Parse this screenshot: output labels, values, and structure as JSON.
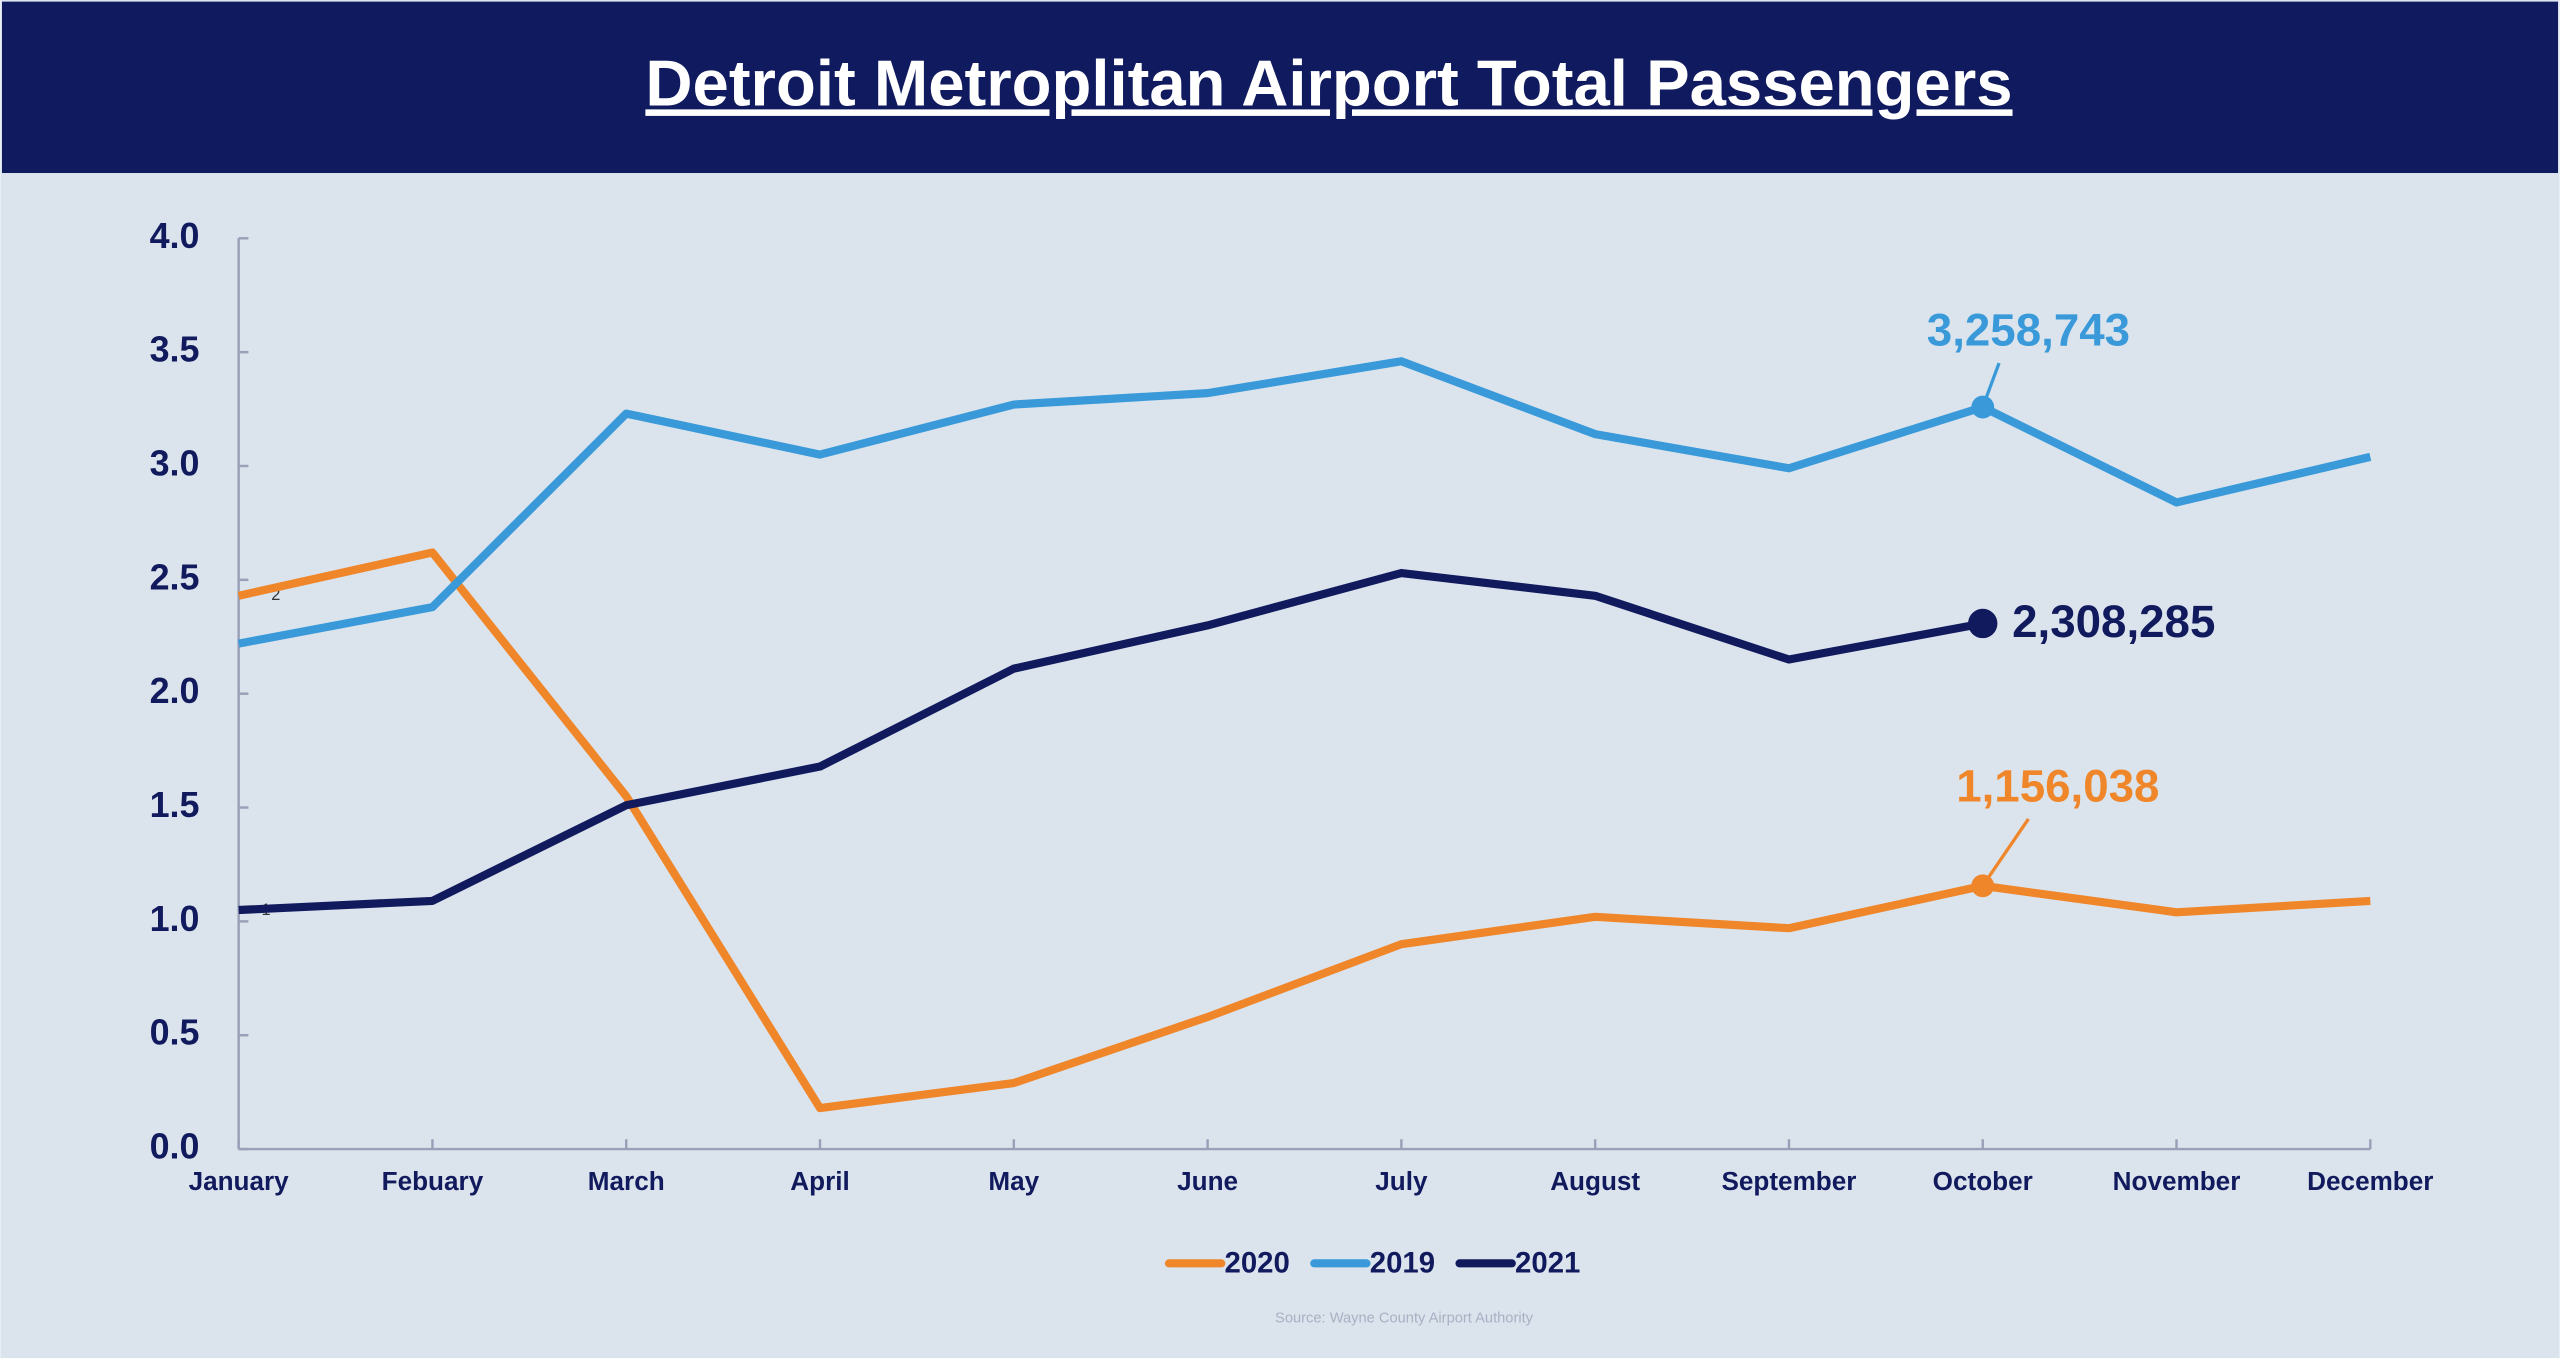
{
  "chart_data": {
    "type": "line",
    "title": "Detroit Metroplitan Airport Total Passengers",
    "categories": [
      "January",
      "Febuary",
      "March",
      "April",
      "May",
      "June",
      "July",
      "August",
      "September",
      "October",
      "November",
      "December"
    ],
    "series": [
      {
        "name": "2020",
        "color": "#f0862a",
        "values": [
          2.43,
          2.62,
          1.55,
          0.18,
          0.29,
          0.58,
          0.9,
          1.02,
          0.97,
          1.156038,
          1.04,
          1.09
        ],
        "value_labels": [
          null,
          null,
          null,
          null,
          null,
          null,
          null,
          null,
          null,
          "1,156,038",
          null,
          null
        ]
      },
      {
        "name": "2019",
        "color": "#3a9ad9",
        "values": [
          2.22,
          2.38,
          3.23,
          3.05,
          3.27,
          3.32,
          3.46,
          3.14,
          2.99,
          3.258743,
          2.84,
          3.04
        ],
        "value_labels": [
          null,
          null,
          null,
          null,
          null,
          null,
          null,
          null,
          null,
          "3,258,743",
          null,
          null
        ]
      },
      {
        "name": "2021",
        "color": "#121a5e",
        "values": [
          1.05,
          1.09,
          1.51,
          1.68,
          2.11,
          2.3,
          2.53,
          2.43,
          2.15,
          2.308285,
          null,
          null
        ],
        "value_labels": [
          null,
          null,
          null,
          null,
          null,
          null,
          null,
          null,
          null,
          "2,308,285",
          null,
          null
        ]
      }
    ],
    "ylim": [
      0,
      4
    ],
    "yticks": [
      {
        "value": 0,
        "label": "0.0"
      },
      {
        "value": 0.5,
        "label": "0.5"
      },
      {
        "value": 1,
        "label": "1.0"
      },
      {
        "value": 1.5,
        "label": "1.5"
      },
      {
        "value": 2,
        "label": "2.0"
      },
      {
        "value": 2.5,
        "label": "2.5"
      },
      {
        "value": 3,
        "label": "3.0"
      },
      {
        "value": 3.5,
        "label": "3.5"
      },
      {
        "value": 4,
        "label": "4.0"
      }
    ],
    "annotations": [
      "2",
      "1"
    ],
    "source": "Source: Wayne County Airport Authority",
    "legend": "bottom"
  }
}
